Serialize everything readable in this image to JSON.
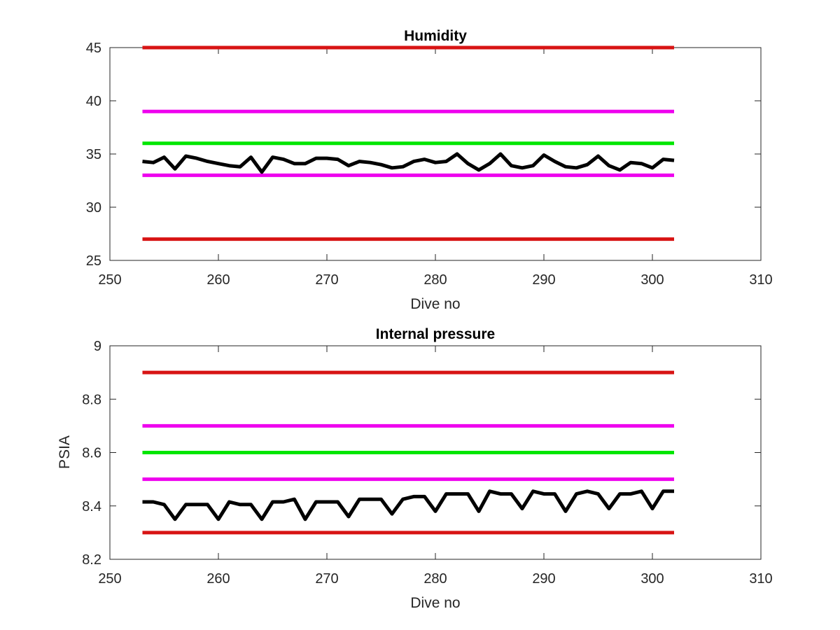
{
  "chart_data": [
    {
      "type": "line",
      "title": "Humidity",
      "xlabel": "Dive no",
      "ylabel": "",
      "xlim": [
        250,
        310
      ],
      "ylim": [
        25,
        45
      ],
      "xticks": [
        250,
        260,
        270,
        280,
        290,
        300,
        310
      ],
      "yticks": [
        25,
        30,
        35,
        40,
        45
      ],
      "grid": false,
      "series": [
        {
          "color": "#d81414",
          "x": [
            253,
            302
          ],
          "values": [
            45,
            45
          ]
        },
        {
          "color": "#ee00ee",
          "x": [
            253,
            302
          ],
          "values": [
            39,
            39
          ]
        },
        {
          "color": "#00e600",
          "x": [
            253,
            302
          ],
          "values": [
            36,
            36
          ]
        },
        {
          "color": "#ee00ee",
          "x": [
            253,
            302
          ],
          "values": [
            33,
            33
          ]
        },
        {
          "color": "#d81414",
          "x": [
            253,
            302
          ],
          "values": [
            27,
            27
          ]
        },
        {
          "color": "#000000",
          "x": [
            253,
            254,
            255,
            256,
            257,
            258,
            259,
            260,
            261,
            262,
            263,
            264,
            265,
            266,
            267,
            268,
            269,
            270,
            271,
            272,
            273,
            274,
            275,
            276,
            277,
            278,
            279,
            280,
            281,
            282,
            283,
            284,
            285,
            286,
            287,
            288,
            289,
            290,
            291,
            292,
            293,
            294,
            295,
            296,
            297,
            298,
            299,
            300,
            301,
            302
          ],
          "values": [
            34.3,
            34.2,
            34.7,
            33.6,
            34.8,
            34.6,
            34.3,
            34.1,
            33.9,
            33.8,
            34.7,
            33.3,
            34.7,
            34.5,
            34.1,
            34.1,
            34.6,
            34.6,
            34.5,
            33.9,
            34.3,
            34.2,
            34.0,
            33.7,
            33.8,
            34.3,
            34.5,
            34.2,
            34.3,
            35.0,
            34.1,
            33.5,
            34.1,
            35.0,
            33.9,
            33.7,
            33.9,
            34.9,
            34.3,
            33.8,
            33.7,
            34.0,
            34.8,
            33.9,
            33.5,
            34.2,
            34.1,
            33.7,
            34.5,
            34.4
          ]
        }
      ]
    },
    {
      "type": "line",
      "title": "Internal pressure",
      "xlabel": "Dive no",
      "ylabel": "PSIA",
      "xlim": [
        250,
        310
      ],
      "ylim": [
        8.2,
        9
      ],
      "xticks": [
        250,
        260,
        270,
        280,
        290,
        300,
        310
      ],
      "yticks": [
        8.2,
        8.4,
        8.6,
        8.8,
        9
      ],
      "grid": false,
      "series": [
        {
          "color": "#d81414",
          "x": [
            253,
            302
          ],
          "values": [
            8.9,
            8.9
          ]
        },
        {
          "color": "#ee00ee",
          "x": [
            253,
            302
          ],
          "values": [
            8.7,
            8.7
          ]
        },
        {
          "color": "#00e600",
          "x": [
            253,
            302
          ],
          "values": [
            8.6,
            8.6
          ]
        },
        {
          "color": "#ee00ee",
          "x": [
            253,
            302
          ],
          "values": [
            8.5,
            8.5
          ]
        },
        {
          "color": "#d81414",
          "x": [
            253,
            302
          ],
          "values": [
            8.3,
            8.3
          ]
        },
        {
          "color": "#000000",
          "x": [
            253,
            254,
            255,
            256,
            257,
            258,
            259,
            260,
            261,
            262,
            263,
            264,
            265,
            266,
            267,
            268,
            269,
            270,
            271,
            272,
            273,
            274,
            275,
            276,
            277,
            278,
            279,
            280,
            281,
            282,
            283,
            284,
            285,
            286,
            287,
            288,
            289,
            290,
            291,
            292,
            293,
            294,
            295,
            296,
            297,
            298,
            299,
            300,
            301,
            302
          ],
          "values": [
            8.415,
            8.415,
            8.405,
            8.35,
            8.405,
            8.405,
            8.405,
            8.35,
            8.415,
            8.405,
            8.405,
            8.35,
            8.415,
            8.415,
            8.425,
            8.35,
            8.415,
            8.415,
            8.415,
            8.36,
            8.425,
            8.425,
            8.425,
            8.37,
            8.425,
            8.435,
            8.435,
            8.38,
            8.445,
            8.445,
            8.445,
            8.38,
            8.455,
            8.445,
            8.445,
            8.39,
            8.455,
            8.445,
            8.445,
            8.38,
            8.445,
            8.455,
            8.445,
            8.39,
            8.445,
            8.445,
            8.455,
            8.39,
            8.455,
            8.455
          ]
        }
      ]
    }
  ]
}
